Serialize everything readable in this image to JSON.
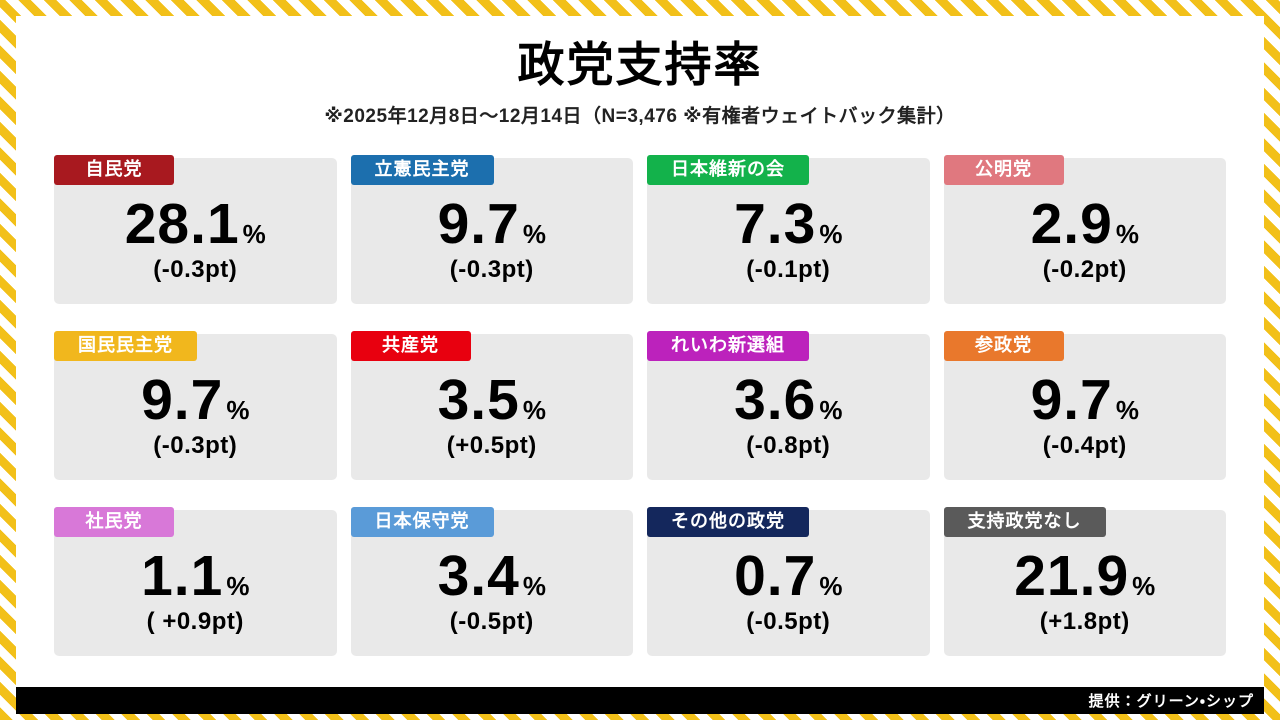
{
  "title": "政党支持率",
  "subtitle": "※2025年12月8日～12月14日（N=3,476 ※有権者ウェイトバック集計）",
  "credit": "提供：グリーン・シップ",
  "unit": "%",
  "frame": {
    "stripe_yellow": "#f2c019",
    "stripe_white": "#ffffff",
    "card_background": "#e9e9e9",
    "credit_bar_background": "#000000"
  },
  "chart_data": {
    "type": "table",
    "title": "政党支持率",
    "survey_period": "2025年12月8日～12月14日",
    "sample_size": "N=3,476",
    "note": "有権者ウェイトバック集計",
    "unit": "%",
    "parties": [
      {
        "name": "自民党",
        "value": "28.1",
        "change": "(-0.3pt)",
        "color": "#a8191f"
      },
      {
        "name": "立憲民主党",
        "value": "9.7",
        "change": "(-0.3pt)",
        "color": "#1c6fae"
      },
      {
        "name": "日本維新の会",
        "value": "7.3",
        "change": "(-0.1pt)",
        "color": "#13b24b"
      },
      {
        "name": "公明党",
        "value": "2.9",
        "change": "(-0.2pt)",
        "color": "#e0787f"
      },
      {
        "name": "国民民主党",
        "value": "9.7",
        "change": "(-0.3pt)",
        "color": "#f1b71d"
      },
      {
        "name": "共産党",
        "value": "3.5",
        "change": "(+0.5pt)",
        "color": "#e8000f"
      },
      {
        "name": "れいわ新選組",
        "value": "3.6",
        "change": "(-0.8pt)",
        "color": "#bc22bc"
      },
      {
        "name": "参政党",
        "value": "9.7",
        "change": "(-0.4pt)",
        "color": "#e9782c"
      },
      {
        "name": "社民党",
        "value": "1.1",
        "change": "( +0.9pt)",
        "color": "#d878d8"
      },
      {
        "name": "日本保守党",
        "value": "3.4",
        "change": "(-0.5pt)",
        "color": "#5a9bd8"
      },
      {
        "name": "その他の政党",
        "value": "0.7",
        "change": "(-0.5pt)",
        "color": "#14275c"
      },
      {
        "name": "支持政党なし",
        "value": "21.9",
        "change": "(+1.8pt)",
        "color": "#5a5a5a"
      }
    ]
  }
}
